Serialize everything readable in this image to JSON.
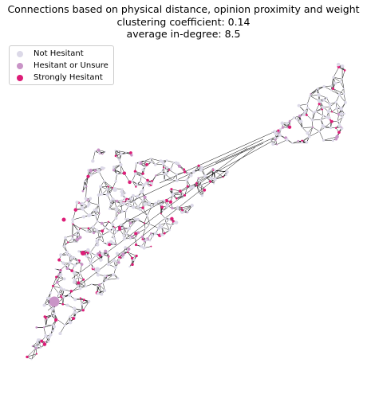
{
  "title": {
    "line1": "Connections based on physical distance, opinion proximity and weight",
    "line2": "clustering coefficient: 0.14",
    "line3": "average in-degree: 8.5"
  },
  "legend": [
    {
      "label": "Not Hesitant",
      "color": "#dcd9e8"
    },
    {
      "label": "Hesitant or Unsure",
      "color": "#c994c7"
    },
    {
      "label": "Strongly Hesitant",
      "color": "#dd1c77"
    }
  ],
  "network": {
    "edge_color": "#000000",
    "node_colors": {
      "not_hesitant": "#dcd9e8",
      "hesitant_or_unsure": "#c994c7",
      "strongly_hesitant": "#dd1c77"
    }
  }
}
